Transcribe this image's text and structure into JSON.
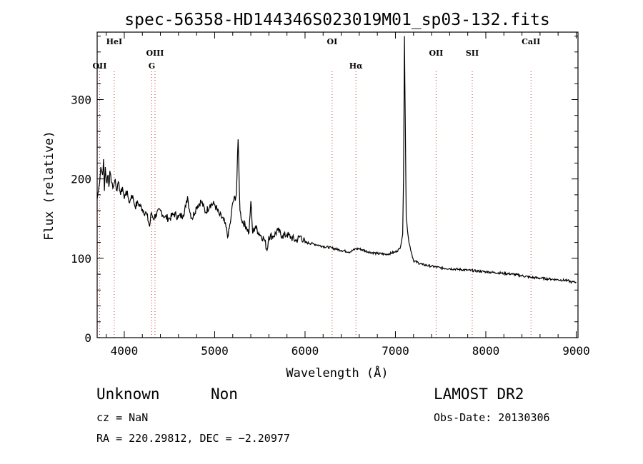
{
  "chart_data": {
    "type": "line",
    "title": "spec-56358-HD144346S023019M01_sp03-132.fits",
    "xlabel": "Wavelength (Å)",
    "ylabel": "Flux (relative)",
    "xlim": [
      3700,
      9020
    ],
    "ylim": [
      0,
      385
    ],
    "xticks": [
      4000,
      5000,
      6000,
      7000,
      8000,
      9000
    ],
    "yticks": [
      0,
      100,
      200,
      300
    ],
    "grid": false,
    "series": [
      {
        "name": "flux",
        "x": [
          3700,
          3720,
          3740,
          3760,
          3770,
          3780,
          3790,
          3800,
          3810,
          3820,
          3830,
          3840,
          3850,
          3860,
          3880,
          3900,
          3920,
          3940,
          3960,
          3980,
          4000,
          4020,
          4040,
          4060,
          4080,
          4100,
          4120,
          4150,
          4200,
          4250,
          4280,
          4300,
          4320,
          4350,
          4400,
          4450,
          4500,
          4550,
          4600,
          4650,
          4680,
          4700,
          4720,
          4750,
          4800,
          4850,
          4900,
          4950,
          5000,
          5050,
          5100,
          5150,
          5180,
          5200,
          5240,
          5260,
          5280,
          5300,
          5350,
          5380,
          5400,
          5420,
          5450,
          5500,
          5550,
          5580,
          5600,
          5650,
          5700,
          5750,
          5800,
          5850,
          5900,
          5950,
          6000,
          6100,
          6200,
          6300,
          6400,
          6500,
          6560,
          6600,
          6700,
          6800,
          6900,
          7000,
          7050,
          7080,
          7090,
          7100,
          7110,
          7120,
          7150,
          7200,
          7300,
          7400,
          7500,
          7600,
          7700,
          7800,
          7900,
          8000,
          8100,
          8200,
          8300,
          8400,
          8500,
          8600,
          8700,
          8800,
          8900,
          8950,
          9000
        ],
        "values": [
          175,
          190,
          215,
          205,
          225,
          185,
          215,
          200,
          195,
          205,
          190,
          210,
          205,
          195,
          190,
          200,
          185,
          195,
          180,
          190,
          175,
          185,
          178,
          170,
          180,
          175,
          165,
          170,
          162,
          155,
          140,
          158,
          150,
          155,
          160,
          152,
          150,
          156,
          152,
          155,
          165,
          178,
          162,
          150,
          165,
          172,
          158,
          168,
          168,
          155,
          148,
          128,
          150,
          170,
          180,
          250,
          160,
          148,
          140,
          132,
          172,
          132,
          140,
          130,
          124,
          110,
          128,
          128,
          135,
          128,
          130,
          126,
          122,
          128,
          120,
          118,
          115,
          113,
          110,
          108,
          112,
          112,
          108,
          106,
          105,
          108,
          112,
          130,
          200,
          380,
          260,
          150,
          120,
          97,
          92,
          90,
          88,
          87,
          86,
          85,
          84,
          83,
          82,
          81,
          80,
          78,
          76,
          75,
          74,
          73,
          72,
          70,
          70
        ]
      }
    ],
    "line_markers": [
      {
        "label": "OII",
        "x": 3727,
        "row": 3
      },
      {
        "label": "HeI",
        "x": 3889,
        "row": 1
      },
      {
        "label": "OIII",
        "x": 4340,
        "row": 2
      },
      {
        "label": "G",
        "x": 4304,
        "row": 3
      },
      {
        "label": "OI",
        "x": 6300,
        "row": 1
      },
      {
        "label": "Hα",
        "x": 6563,
        "row": 3
      },
      {
        "label": "OII",
        "x": 7450,
        "row": 2
      },
      {
        "label": "SII",
        "x": 7850,
        "row": 2
      },
      {
        "label": "CaII",
        "x": 8500,
        "row": 1
      }
    ]
  },
  "info": {
    "class": "Unknown",
    "subclass": "Non",
    "cz": "cz = NaN",
    "coords": "RA = 220.29812, DEC =  −2.20977",
    "survey": "LAMOST DR2",
    "obs_date": "Obs-Date: 20130306"
  }
}
